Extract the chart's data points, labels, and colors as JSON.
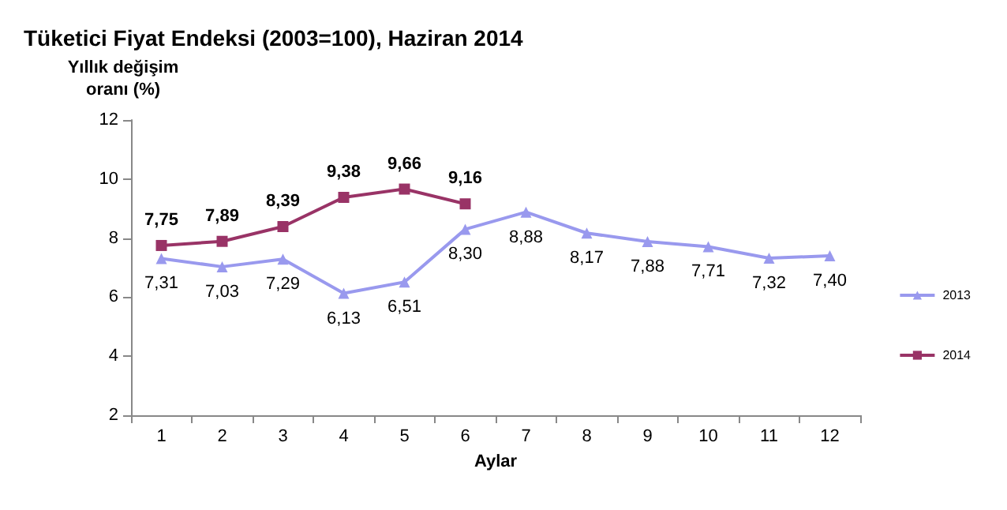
{
  "chart_data": {
    "type": "line",
    "title": "Tüketici Fiyat Endeksi (2003=100), Haziran 2014",
    "xlabel": "Aylar",
    "ylabel": "Yıllık değişim\noranı (%)",
    "categories": [
      "1",
      "2",
      "3",
      "4",
      "5",
      "6",
      "7",
      "8",
      "9",
      "10",
      "11",
      "12"
    ],
    "ylim": [
      2,
      12
    ],
    "yticks": [
      2,
      4,
      6,
      8,
      10,
      12
    ],
    "grid": false,
    "legend": "right",
    "series": [
      {
        "name": "2013",
        "color": "#9999ee",
        "marker": "triangle",
        "values": [
          7.31,
          7.03,
          7.29,
          6.13,
          6.51,
          8.3,
          8.88,
          8.17,
          7.88,
          7.71,
          7.32,
          7.4
        ],
        "value_labels": [
          "7,31",
          "7,03",
          "7,29",
          "6,13",
          "6,51",
          "8,30",
          "8,88",
          "8,17",
          "7,88",
          "7,71",
          "7,32",
          "7,40"
        ]
      },
      {
        "name": "2014",
        "color": "#993366",
        "marker": "square",
        "values": [
          7.75,
          7.89,
          8.39,
          9.38,
          9.66,
          9.16,
          null,
          null,
          null,
          null,
          null,
          null
        ],
        "value_labels": [
          "7,75",
          "7,89",
          "8,39",
          "9,38",
          "9,66",
          "9,16",
          null,
          null,
          null,
          null,
          null,
          null
        ]
      }
    ]
  }
}
